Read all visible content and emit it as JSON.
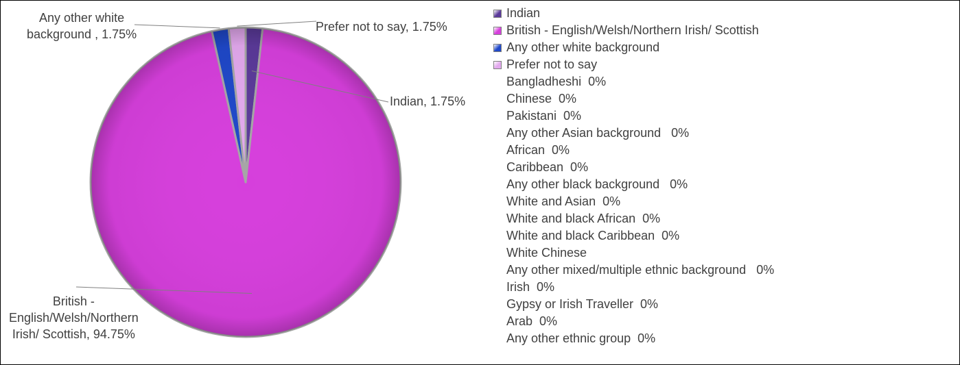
{
  "chart_data": {
    "type": "pie",
    "slices": [
      {
        "name": "Indian",
        "value": 1.75,
        "color": "#5b3a9a",
        "label": "Indian, 1.75%"
      },
      {
        "name": "British - English/Welsh/Northern Irish/ Scottish",
        "value": 94.75,
        "color": "#d63fdc",
        "label_lines": [
          "British -",
          "English/Welsh/Northern",
          "Irish/ Scottish, 94.75%"
        ]
      },
      {
        "name": "Any other white background",
        "value": 1.75,
        "color": "#1f48c9",
        "label_lines": [
          "Any other white",
          "background  , 1.75%"
        ]
      },
      {
        "name": "Prefer not to say",
        "value": 1.75,
        "color": "#e3a9ee",
        "label": "Prefer not to say, 1.75%"
      }
    ],
    "legend": {
      "position": "right",
      "entries": [
        {
          "text": "Indian",
          "color": "#5b3a9a"
        },
        {
          "text": "British - English/Welsh/Northern Irish/ Scottish",
          "color": "#d63fdc"
        },
        {
          "text": "Any other white background",
          "color": "#1f48c9"
        },
        {
          "text": "Prefer not to say",
          "color": "#e3a9ee"
        },
        {
          "text": "Bangladheshi  0%"
        },
        {
          "text": "Chinese  0%"
        },
        {
          "text": "Pakistani  0%"
        },
        {
          "text": "Any other Asian background   0%"
        },
        {
          "text": "African  0%"
        },
        {
          "text": "Caribbean  0%"
        },
        {
          "text": "Any other black background   0%"
        },
        {
          "text": "White and Asian  0%"
        },
        {
          "text": "White and black African  0%"
        },
        {
          "text": "White and black Caribbean  0%"
        },
        {
          "text": "White Chinese"
        },
        {
          "text": "Any other mixed/multiple ethnic background   0%"
        },
        {
          "text": "Irish  0%"
        },
        {
          "text": "Gypsy or Irish Traveller  0%"
        },
        {
          "text": "Arab  0%"
        },
        {
          "text": "Any other ethnic group  0%"
        }
      ]
    }
  }
}
